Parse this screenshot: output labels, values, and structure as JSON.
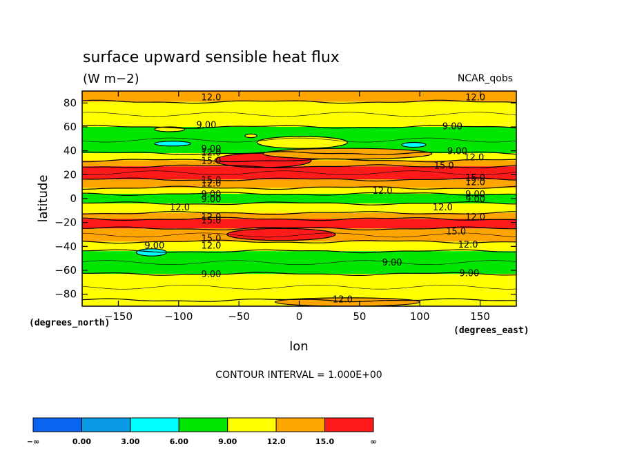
{
  "chart_data": {
    "type": "heatmap",
    "title": "surface upward sensible heat flux",
    "units": "(W m−2)",
    "dataset": "NCAR_qobs",
    "xlabel": "lon",
    "ylabel": "latitude",
    "x_unit": "(degrees_east)",
    "y_unit": "(degrees_north)",
    "xlim": [
      -180,
      180
    ],
    "ylim": [
      -90,
      90
    ],
    "x_ticks": [
      -150,
      -100,
      -50,
      0,
      50,
      100,
      150
    ],
    "y_ticks": [
      -80,
      -60,
      -40,
      -20,
      0,
      20,
      40,
      60,
      80
    ],
    "contour_interval": "CONTOUR INTERVAL = 1.000E+00",
    "zonal_bands": [
      {
        "lat_min": 81,
        "lat_max": 90,
        "level": "orange"
      },
      {
        "lat_min": 60,
        "lat_max": 81,
        "level": "yellow"
      },
      {
        "lat_min": 38,
        "lat_max": 60,
        "level": "green"
      },
      {
        "lat_min": 32,
        "lat_max": 38,
        "level": "yellow"
      },
      {
        "lat_min": 27,
        "lat_max": 32,
        "level": "orange"
      },
      {
        "lat_min": 16,
        "lat_max": 27,
        "level": "red"
      },
      {
        "lat_min": 9,
        "lat_max": 16,
        "level": "orange"
      },
      {
        "lat_min": 4,
        "lat_max": 9,
        "level": "yellow"
      },
      {
        "lat_min": -4,
        "lat_max": 4,
        "level": "green"
      },
      {
        "lat_min": -12,
        "lat_max": -4,
        "level": "yellow"
      },
      {
        "lat_min": -17,
        "lat_max": -12,
        "level": "orange"
      },
      {
        "lat_min": -25,
        "lat_max": -17,
        "level": "red"
      },
      {
        "lat_min": -36,
        "lat_max": -25,
        "level": "orange"
      },
      {
        "lat_min": -44,
        "lat_max": -36,
        "level": "yellow"
      },
      {
        "lat_min": -63,
        "lat_max": -44,
        "level": "green"
      },
      {
        "lat_min": -85,
        "lat_max": -63,
        "level": "yellow"
      },
      {
        "lat_min": -90,
        "lat_max": -85,
        "level": "yellow"
      }
    ],
    "regions": [
      {
        "level": "red",
        "lon_min": -70,
        "lon_max": 10,
        "lat_min": 26,
        "lat_max": 38
      },
      {
        "level": "red",
        "lon_min": -60,
        "lon_max": 30,
        "lat_min": -35,
        "lat_max": -25
      },
      {
        "level": "orange",
        "lon_min": -30,
        "lon_max": 110,
        "lat_min": 33,
        "lat_max": 42
      },
      {
        "level": "yellow",
        "lon_min": -35,
        "lon_max": 40,
        "lat_min": 42,
        "lat_max": 52
      },
      {
        "level": "orange",
        "lon_min": -20,
        "lon_max": 100,
        "lat_min": -90,
        "lat_max": -83
      },
      {
        "level": "cyan",
        "lon_min": -120,
        "lon_max": -90,
        "lat_min": 44,
        "lat_max": 48
      },
      {
        "level": "cyan",
        "lon_min": 85,
        "lon_max": 105,
        "lat_min": 43,
        "lat_max": 47
      },
      {
        "level": "cyan",
        "lon_min": -135,
        "lon_max": -110,
        "lat_min": -48,
        "lat_max": -42
      },
      {
        "level": "yellow",
        "lon_min": -45,
        "lon_max": -35,
        "lat_min": 51,
        "lat_max": 54
      },
      {
        "level": "yellow",
        "lon_min": -120,
        "lon_max": -95,
        "lat_min": 56,
        "lat_max": 60
      }
    ],
    "contour_labels": [
      {
        "text": "12.0",
        "lon": -73,
        "lat": 85
      },
      {
        "text": "12.0",
        "lon": 146,
        "lat": 85
      },
      {
        "text": "9.00",
        "lon": -77,
        "lat": 62
      },
      {
        "text": "9.00",
        "lon": 127,
        "lat": 61
      },
      {
        "text": "9.00",
        "lon": -73,
        "lat": 42
      },
      {
        "text": "12.0",
        "lon": -73,
        "lat": 39
      },
      {
        "text": "9.00",
        "lon": 131,
        "lat": 40
      },
      {
        "text": "12.0",
        "lon": 145,
        "lat": 35
      },
      {
        "text": "15.0",
        "lon": -73,
        "lat": 32
      },
      {
        "text": "15.0",
        "lon": 120,
        "lat": 28
      },
      {
        "text": "15.0",
        "lon": -73,
        "lat": 16
      },
      {
        "text": "12.0",
        "lon": -73,
        "lat": 13
      },
      {
        "text": "15.0",
        "lon": 146,
        "lat": 18
      },
      {
        "text": "12.0",
        "lon": 146,
        "lat": 14
      },
      {
        "text": "12.0",
        "lon": 69,
        "lat": 7
      },
      {
        "text": "9.00",
        "lon": -73,
        "lat": 4
      },
      {
        "text": "9.00",
        "lon": -73,
        "lat": 0
      },
      {
        "text": "9.00",
        "lon": 146,
        "lat": 4
      },
      {
        "text": "9.00",
        "lon": 146,
        "lat": 0
      },
      {
        "text": "12.0",
        "lon": -99,
        "lat": -7
      },
      {
        "text": "12.0",
        "lon": 119,
        "lat": -7
      },
      {
        "text": "12.0",
        "lon": -73,
        "lat": -15
      },
      {
        "text": "15.0",
        "lon": -73,
        "lat": -18
      },
      {
        "text": "12.0",
        "lon": 146,
        "lat": -15
      },
      {
        "text": "15.0",
        "lon": 130,
        "lat": -27
      },
      {
        "text": "15.0",
        "lon": -73,
        "lat": -33
      },
      {
        "text": "12.0",
        "lon": -73,
        "lat": -39
      },
      {
        "text": "12.0",
        "lon": 140,
        "lat": -38
      },
      {
        "text": "9.00",
        "lon": -120,
        "lat": -39
      },
      {
        "text": "9.00",
        "lon": 77,
        "lat": -53
      },
      {
        "text": "9.00",
        "lon": -73,
        "lat": -63
      },
      {
        "text": "9.00",
        "lon": 141,
        "lat": -62
      },
      {
        "text": "12.0",
        "lon": 36,
        "lat": -84
      }
    ],
    "colorbar": {
      "colors": [
        "#0a64f0",
        "#0a9be6",
        "#00ffff",
        "#00e600",
        "#ffff00",
        "#ffa500",
        "#ff1a1a"
      ],
      "labels": [
        "−∞",
        "0.00",
        "3.00",
        "6.00",
        "9.00",
        "12.0",
        "15.0",
        "∞"
      ]
    },
    "level_colors": {
      "cyan": "#00ffff",
      "green": "#00e600",
      "yellow": "#ffff00",
      "orange": "#ffa500",
      "red": "#ff1a1a"
    }
  }
}
